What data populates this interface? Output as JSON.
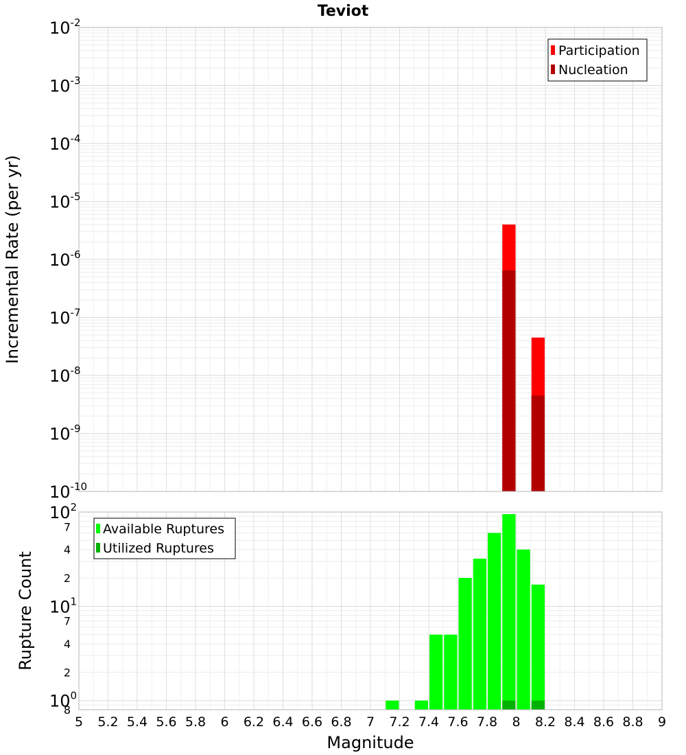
{
  "chart_data": [
    {
      "type": "bar",
      "title": "Teviot",
      "ylabel": "Incremental Rate (per yr)",
      "yscale": "log",
      "ylim": [
        1e-10,
        0.01
      ],
      "grid": true,
      "legend_placement": "top-right",
      "legend": [
        "Participation",
        "Nucleation"
      ],
      "series": [
        {
          "name": "Participation",
          "color": "#ff0000",
          "x": [
            7.95,
            8.15
          ],
          "values": [
            4e-06,
            4.5e-08
          ]
        },
        {
          "name": "Nucleation",
          "color": "#b20000",
          "x": [
            7.95,
            8.15
          ],
          "values": [
            6.5e-07,
            4.5e-09
          ]
        }
      ],
      "y_ticks": [
        {
          "base": "10",
          "exp": "-2",
          "value": 0.01
        },
        {
          "base": "10",
          "exp": "-3",
          "value": 0.001
        },
        {
          "base": "10",
          "exp": "-4",
          "value": 0.0001
        },
        {
          "base": "10",
          "exp": "-5",
          "value": 1e-05
        },
        {
          "base": "10",
          "exp": "-6",
          "value": 1e-06
        },
        {
          "base": "10",
          "exp": "-7",
          "value": 1e-07
        },
        {
          "base": "10",
          "exp": "-8",
          "value": 1e-08
        },
        {
          "base": "10",
          "exp": "-9",
          "value": 1e-09
        },
        {
          "base": "10",
          "exp": "-10",
          "value": 1e-10
        }
      ]
    },
    {
      "type": "bar",
      "ylabel": "Rupture Count",
      "xlabel": "Magnitude",
      "yscale": "log",
      "ylim": [
        0.8,
        100
      ],
      "grid": true,
      "legend_placement": "top-left",
      "legend": [
        "Available Ruptures",
        "Utilized Ruptures"
      ],
      "series": [
        {
          "name": "Available Ruptures",
          "color": "#00ff00",
          "x": [
            7.15,
            7.35,
            7.45,
            7.55,
            7.65,
            7.75,
            7.85,
            7.95,
            8.05,
            8.15
          ],
          "values": [
            1,
            1,
            5,
            5,
            20,
            32,
            60,
            95,
            40,
            17
          ]
        },
        {
          "name": "Utilized Ruptures",
          "color": "#00b200",
          "x": [
            7.95,
            8.15
          ],
          "values": [
            1,
            1
          ]
        }
      ],
      "y_ticks": [
        {
          "base": "10",
          "exp": "2",
          "value": 100
        },
        {
          "base": "7",
          "exp": "",
          "value": 70
        },
        {
          "base": "4",
          "exp": "",
          "value": 40
        },
        {
          "base": "2",
          "exp": "",
          "value": 20
        },
        {
          "base": "10",
          "exp": "1",
          "value": 10
        },
        {
          "base": "7",
          "exp": "",
          "value": 7
        },
        {
          "base": "4",
          "exp": "",
          "value": 4
        },
        {
          "base": "2",
          "exp": "",
          "value": 2
        },
        {
          "base": "10",
          "exp": "0",
          "value": 1
        },
        {
          "base": "8",
          "exp": "",
          "value": 0.8
        }
      ],
      "xlim": [
        5,
        9
      ],
      "x_ticks": [
        "5",
        "5.2",
        "5.4",
        "5.6",
        "5.8",
        "6",
        "6.2",
        "6.4",
        "6.6",
        "6.8",
        "7",
        "7.2",
        "7.4",
        "7.6",
        "7.8",
        "8",
        "8.2",
        "8.4",
        "8.6",
        "8.8",
        "9"
      ]
    }
  ]
}
